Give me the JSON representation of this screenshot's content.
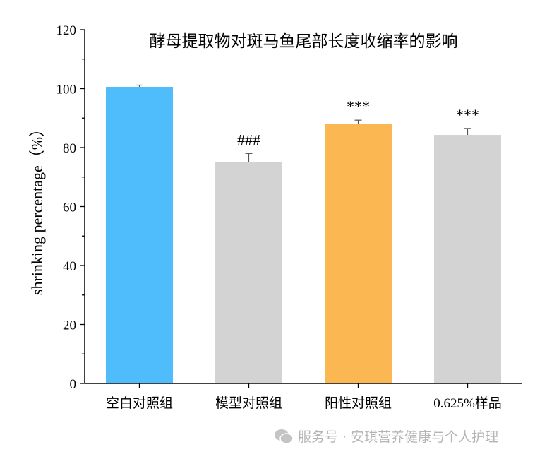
{
  "chart_data": {
    "type": "bar",
    "title": "酵母提取物对斑马鱼尾部长度收缩率的影响",
    "xlabel": "",
    "ylabel": "shrinking percentage（%）",
    "ylim": [
      0,
      120
    ],
    "yticks": [
      0,
      20,
      40,
      60,
      80,
      100,
      120
    ],
    "grid": false,
    "categories": [
      "空白对照组",
      "模型对照组",
      "阳性对照组",
      "0.625%样品"
    ],
    "values": [
      100.6,
      75.1,
      88.0,
      84.3
    ],
    "error_upper": [
      101.2,
      78.0,
      89.3,
      86.5
    ],
    "annotations": [
      "",
      "###",
      "***",
      "***"
    ],
    "colors": [
      "#4fbcfc",
      "#d3d3d3",
      "#fbb752",
      "#d3d3d3"
    ]
  },
  "watermark": {
    "text": "服务号 · 安琪营养健康与个人护理",
    "icon": "wechat-icon"
  }
}
